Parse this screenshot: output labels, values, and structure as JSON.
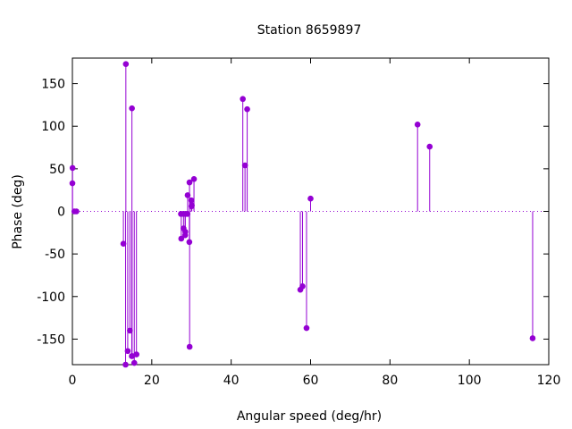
{
  "chart_data": {
    "type": "scatter",
    "style": "impulses-with-points",
    "title": "Station 8659897",
    "xlabel": "Angular speed (deg/hr)",
    "ylabel": "Phase (deg)",
    "xlim": [
      0,
      120
    ],
    "ylim": [
      -180,
      180
    ],
    "xticks": [
      0,
      20,
      40,
      60,
      80,
      100,
      120
    ],
    "yticks": [
      -150,
      -100,
      -50,
      0,
      50,
      100,
      150
    ],
    "xtick_labels": [
      "0",
      "20",
      "40",
      "60",
      "80",
      "100",
      "120"
    ],
    "ytick_labels": [
      "-150",
      "-100",
      "-50",
      "0",
      "50",
      "100",
      "150"
    ],
    "zero_line": "dotted",
    "grid": false,
    "legend": "none",
    "color": "#9400d3",
    "points": [
      {
        "x": 0.0,
        "y": 33
      },
      {
        "x": 0.04,
        "y": 51
      },
      {
        "x": 0.5,
        "y": 0
      },
      {
        "x": 1.0,
        "y": 0
      },
      {
        "x": 12.85,
        "y": -38
      },
      {
        "x": 13.4,
        "y": -180
      },
      {
        "x": 13.47,
        "y": 173
      },
      {
        "x": 13.94,
        "y": -164
      },
      {
        "x": 14.49,
        "y": -140
      },
      {
        "x": 14.96,
        "y": -170
      },
      {
        "x": 15.0,
        "y": 121
      },
      {
        "x": 15.04,
        "y": -170
      },
      {
        "x": 15.59,
        "y": -178
      },
      {
        "x": 16.14,
        "y": -168
      },
      {
        "x": 27.35,
        "y": -3
      },
      {
        "x": 27.42,
        "y": -32
      },
      {
        "x": 27.97,
        "y": -3
      },
      {
        "x": 28.0,
        "y": -20
      },
      {
        "x": 28.4,
        "y": -28
      },
      {
        "x": 28.44,
        "y": -24
      },
      {
        "x": 28.51,
        "y": -3
      },
      {
        "x": 28.98,
        "y": -3
      },
      {
        "x": 29.03,
        "y": 19
      },
      {
        "x": 29.46,
        "y": -36
      },
      {
        "x": 29.5,
        "y": 34
      },
      {
        "x": 29.53,
        "y": -159
      },
      {
        "x": 29.96,
        "y": 13
      },
      {
        "x": 30.0,
        "y": 6
      },
      {
        "x": 30.08,
        "y": 7
      },
      {
        "x": 30.63,
        "y": 38
      },
      {
        "x": 42.93,
        "y": 132
      },
      {
        "x": 43.48,
        "y": 54
      },
      {
        "x": 44.03,
        "y": 120
      },
      {
        "x": 57.42,
        "y": -92
      },
      {
        "x": 57.97,
        "y": -88
      },
      {
        "x": 58.98,
        "y": -137
      },
      {
        "x": 60.0,
        "y": 15
      },
      {
        "x": 86.95,
        "y": 102
      },
      {
        "x": 90.0,
        "y": 76
      },
      {
        "x": 115.94,
        "y": -149
      }
    ]
  }
}
